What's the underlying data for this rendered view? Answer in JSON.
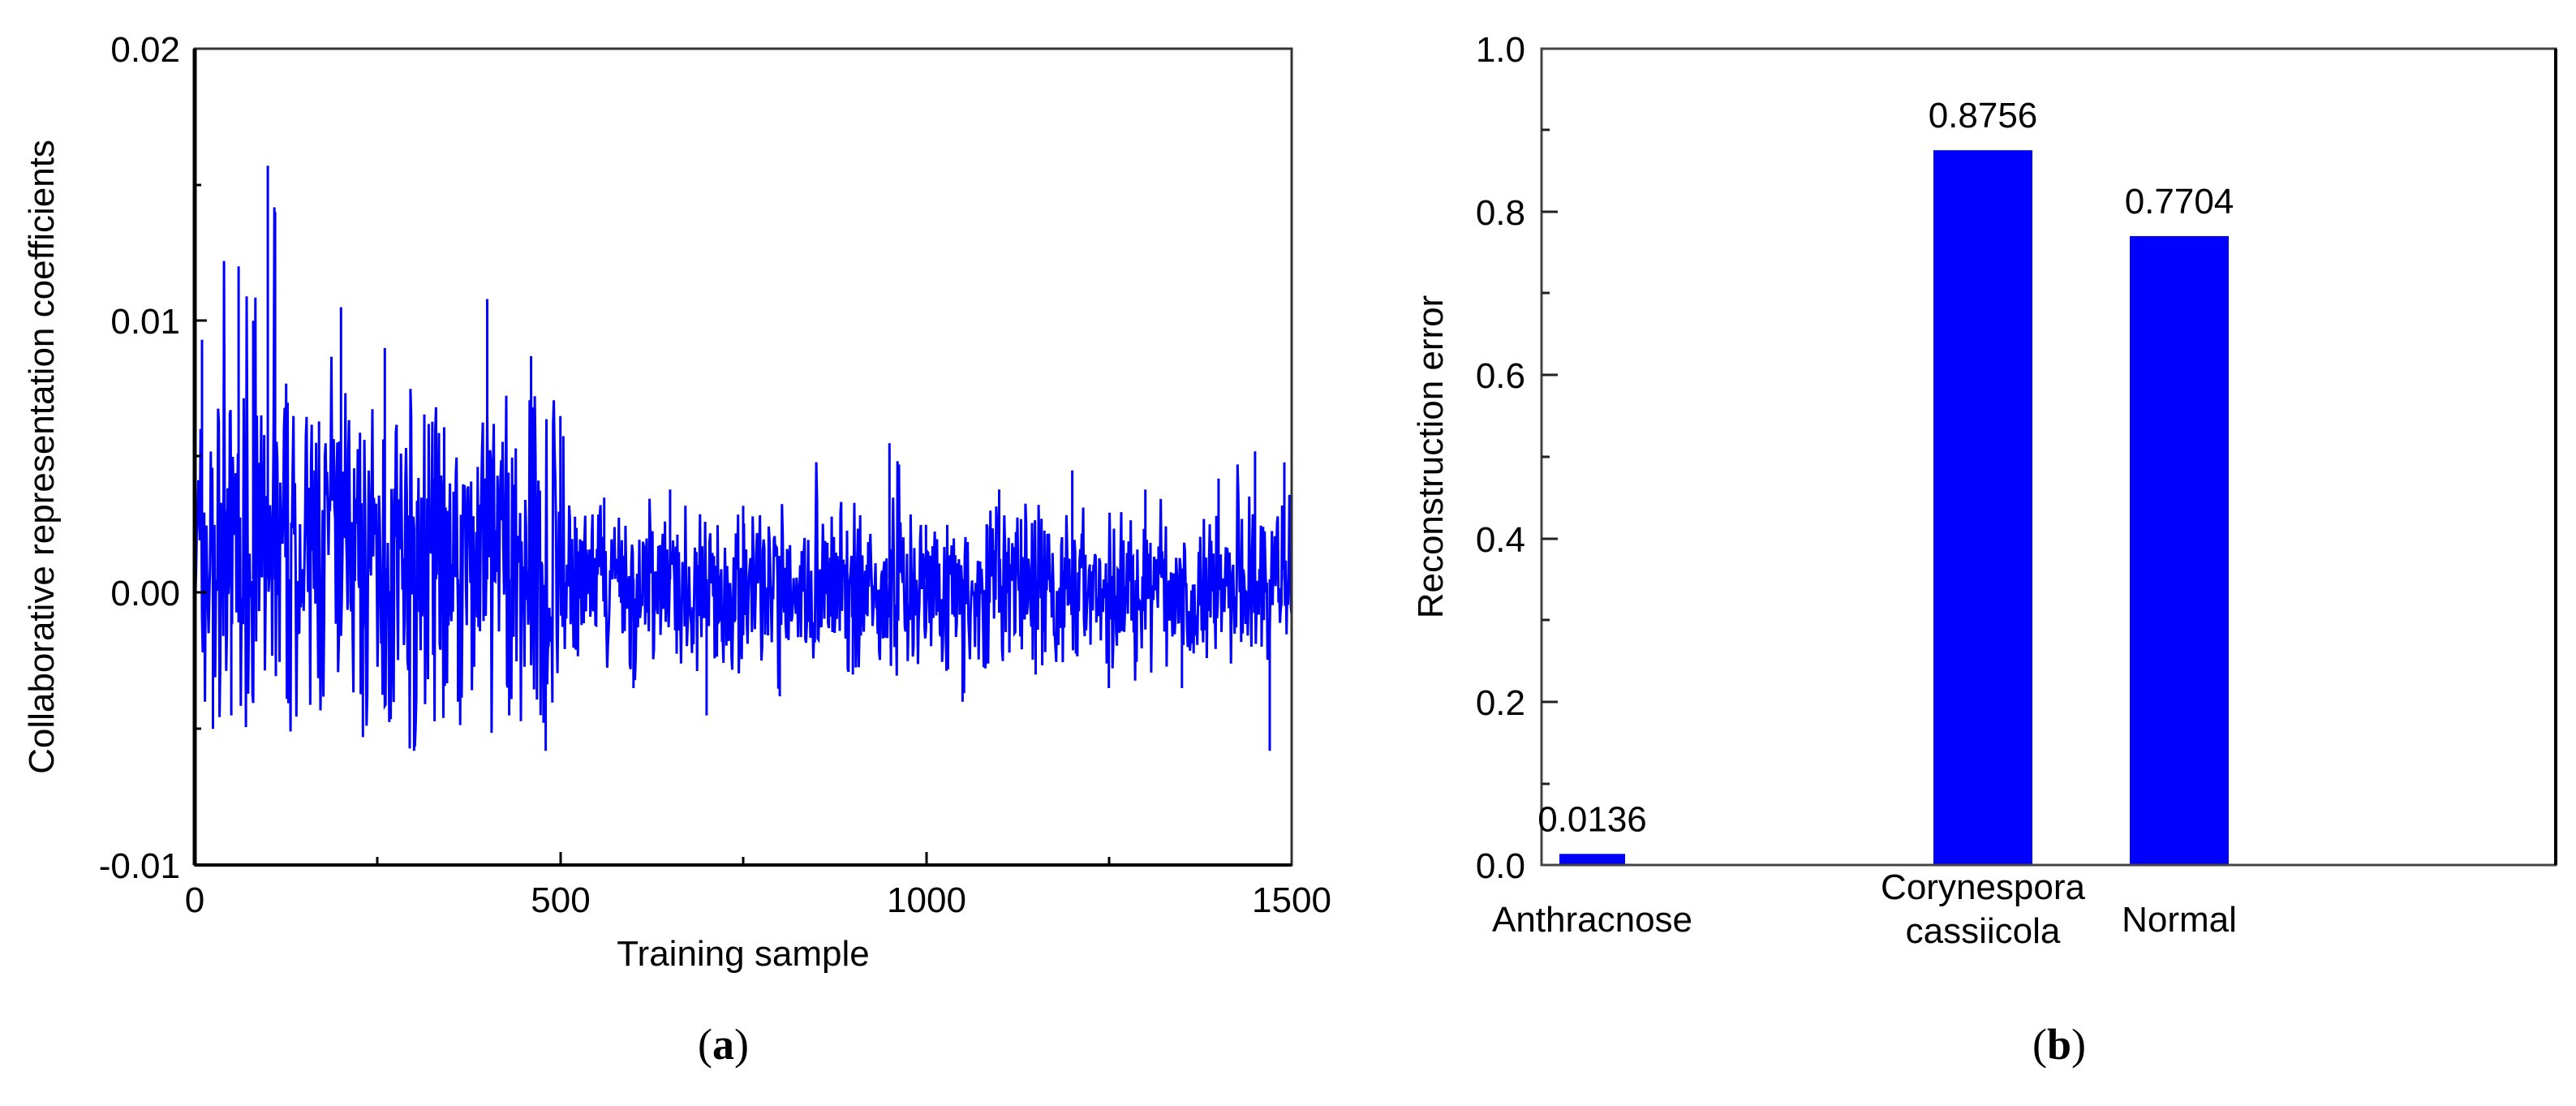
{
  "chart_data": [
    {
      "panel": "(a)",
      "type": "line",
      "title": "",
      "xlabel": "Training sample",
      "ylabel": "Collaborative representation coefficients",
      "xlim": [
        0,
        1500
      ],
      "ylim": [
        -0.01,
        0.02
      ],
      "x_ticks": [
        "0",
        "500",
        "1000",
        "1500"
      ],
      "y_ticks": [
        "-0.01",
        "0.00",
        "0.01",
        "0.02"
      ],
      "grid": false,
      "legend": null,
      "series_color": "#0000ff",
      "series": [
        {
          "name": "coefficients",
          "description": "Noisy coefficient sequence over 1500 training samples; larger amplitude (peaks up to ~0.0157 near sample 100, frequent peaks 0.008-0.012) for samples 0-500, then smaller amplitude (~-0.004 to 0.005) for samples 500-1500",
          "x": [
            0,
            10,
            25,
            40,
            50,
            60,
            80,
            100,
            110,
            130,
            170,
            200,
            230,
            260,
            300,
            330,
            360,
            400,
            430,
            460,
            480,
            500,
            520,
            560,
            600,
            650,
            700,
            750,
            800,
            850,
            900,
            950,
            1000,
            1050,
            1100,
            1150,
            1200,
            1250,
            1300,
            1350,
            1400,
            1450,
            1470,
            1490,
            1500
          ],
          "values": [
            0.005,
            0.0093,
            -0.005,
            0.0122,
            -0.0045,
            0.012,
            0.01,
            0.0157,
            0.014,
            -0.003,
            0.0063,
            0.0105,
            -0.0053,
            0.009,
            -0.0058,
            0.0065,
            -0.004,
            0.0108,
            -0.0045,
            0.0087,
            -0.0058,
            0.0065,
            0.0028,
            0.0035,
            -0.0035,
            0.0038,
            -0.0045,
            0.0032,
            -0.0038,
            0.0048,
            -0.003,
            0.0055,
            0.0025,
            -0.004,
            0.0038,
            -0.003,
            0.0045,
            -0.0035,
            0.0038,
            -0.0035,
            0.0042,
            0.0052,
            -0.0058,
            0.0048,
            0.002
          ]
        }
      ]
    },
    {
      "panel": "(b)",
      "type": "bar",
      "title": "",
      "xlabel": "",
      "ylabel": "Reconstruction error",
      "ylim": [
        0.0,
        1.0
      ],
      "y_ticks": [
        "0.0",
        "0.2",
        "0.4",
        "0.6",
        "0.8",
        "1.0"
      ],
      "grid": false,
      "legend": null,
      "bar_color": "#0000ff",
      "categories": [
        "Anthracnose",
        "Corynespora cassiicola",
        "Normal"
      ],
      "category_lines": [
        [
          "Anthracnose"
        ],
        [
          "Corynespora",
          "cassiicola"
        ],
        [
          "Normal"
        ]
      ],
      "values": [
        0.0136,
        0.8756,
        0.7704
      ],
      "data_labels": [
        "0.0136",
        "0.8756",
        "0.7704"
      ]
    }
  ],
  "panels": {
    "a": {
      "label_open": "(",
      "label_letter": "a",
      "label_close": ")",
      "ylabel": "Collaborative representation coefficients",
      "xlabel": "Training sample",
      "y_ticks": [
        "0.02",
        "0.01",
        "0.00",
        "-0.01"
      ],
      "x_ticks": [
        "0",
        "500",
        "1000",
        "1500"
      ]
    },
    "b": {
      "label_open": "(",
      "label_letter": "b",
      "label_close": ")",
      "ylabel": "Reconstruction error",
      "y_ticks": [
        "1.0",
        "0.8",
        "0.6",
        "0.4",
        "0.2",
        "0.0"
      ],
      "bars": [
        {
          "label_line1": "Anthracnose",
          "label_line2": "",
          "value_label": "0.0136"
        },
        {
          "label_line1": "Corynespora",
          "label_line2": "cassiicola",
          "value_label": "0.8756"
        },
        {
          "label_line1": "Normal",
          "label_line2": "",
          "value_label": "0.7704"
        }
      ]
    }
  }
}
